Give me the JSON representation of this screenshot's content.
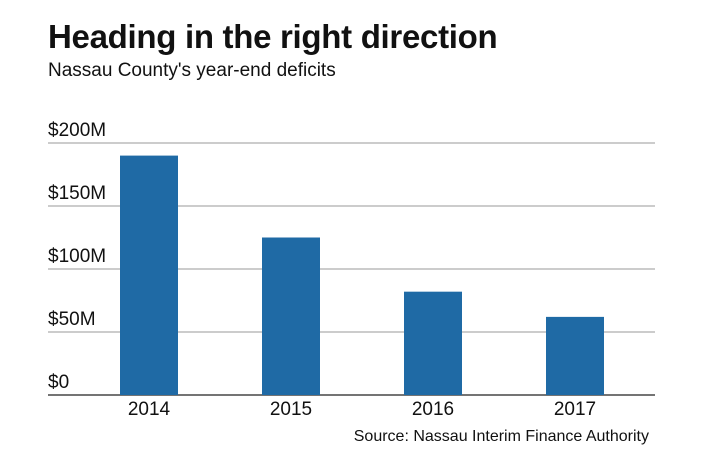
{
  "chart_data": {
    "type": "bar",
    "title": "Heading in the right direction",
    "subtitle": "Nassau County's year-end deficits",
    "source": "Source: Nassau Interim Finance Authority",
    "categories": [
      "2014",
      "2015",
      "2016",
      "2017"
    ],
    "values": [
      190,
      125,
      82,
      62
    ],
    "ylim": [
      0,
      200
    ],
    "yticks": [
      0,
      50,
      100,
      150,
      200
    ],
    "ytick_labels": [
      "$0",
      "$50M",
      "$100M",
      "$150M",
      "$200M"
    ],
    "bar_color": "#1f6aa5",
    "grid": true
  }
}
